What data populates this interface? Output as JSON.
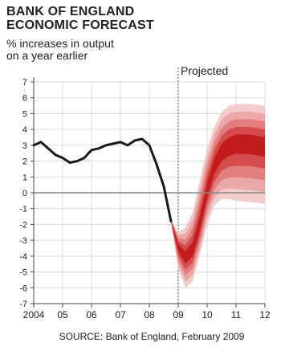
{
  "title_line1": "BANK OF ENGLAND",
  "title_line2": "ECONOMIC FORECAST",
  "subtitle_line1": "% increases in output",
  "subtitle_line2": "on a year earlier",
  "projected_label": "Projected",
  "source": "SOURCE: Bank of England, February 2009",
  "colors": {
    "history_line": "#1a1a1a",
    "fan_outer": "#f2c6c6",
    "fan_middle": "#e07a7a",
    "fan_core": "#c41c1c",
    "zero_line": "#888888",
    "grid": "#d9d9d9"
  },
  "chart_data": {
    "type": "area",
    "title": "BANK OF ENGLAND ECONOMIC FORECAST",
    "ylabel": "% increases in output on a year earlier",
    "xlabel": "",
    "x_tick_labels": [
      "2004",
      "05",
      "06",
      "07",
      "08",
      "09",
      "10",
      "11",
      "12"
    ],
    "y_tick_labels": [
      "7",
      "6",
      "5",
      "4",
      "3",
      "2",
      "1",
      "0",
      "-1",
      "-2",
      "-3",
      "-4",
      "-5",
      "-6",
      "-7"
    ],
    "xlim": [
      2004,
      2012
    ],
    "ylim": [
      -7,
      7
    ],
    "grid": true,
    "projection_start": 2009,
    "series": [
      {
        "name": "",
        "kind": "history",
        "x": [
          2004.0,
          2004.25,
          2004.5,
          2004.75,
          2005.0,
          2005.25,
          2005.5,
          2005.75,
          2006.0,
          2006.25,
          2006.5,
          2006.75,
          2007.0,
          2007.25,
          2007.5,
          2007.75,
          2008.0,
          2008.25,
          2008.5,
          2008.75
        ],
        "y": [
          3.0,
          3.2,
          2.8,
          2.4,
          2.2,
          1.9,
          2.0,
          2.2,
          2.7,
          2.8,
          3.0,
          3.1,
          3.2,
          3.0,
          3.3,
          3.4,
          3.0,
          1.8,
          0.4,
          -1.8
        ]
      },
      {
        "name": "",
        "kind": "fan",
        "x": [
          2008.75,
          2009.0,
          2009.25,
          2009.5,
          2009.75,
          2010.0,
          2010.25,
          2010.5,
          2010.75,
          2011.0,
          2011.5,
          2012.0
        ],
        "central": [
          -1.8,
          -3.4,
          -4.1,
          -3.6,
          -2.0,
          0.1,
          1.7,
          2.6,
          3.0,
          3.2,
          3.2,
          3.0
        ],
        "lower_90": [
          -1.9,
          -4.8,
          -6.0,
          -5.6,
          -3.9,
          -2.0,
          -0.8,
          -0.4,
          -0.4,
          -0.5,
          -0.6,
          -0.7
        ],
        "upper_90": [
          -1.7,
          -2.5,
          -2.2,
          -1.2,
          0.8,
          2.8,
          4.2,
          5.1,
          5.5,
          5.6,
          5.6,
          5.5
        ]
      }
    ]
  }
}
